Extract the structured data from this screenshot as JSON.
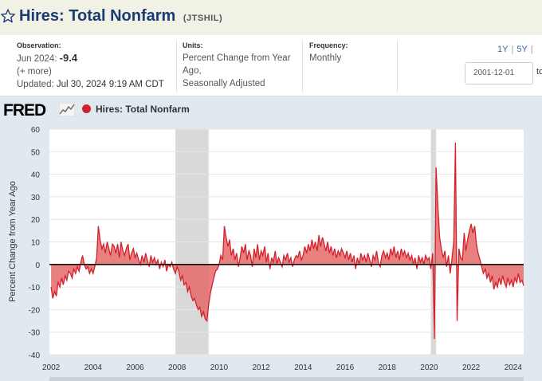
{
  "header": {
    "title": "Hires: Total Nonfarm",
    "series_id": "(JTSHIL)"
  },
  "meta": {
    "observation_label": "Observation:",
    "observation_date": "Jun 2024:",
    "observation_value": "-9.4",
    "more_link": "(+ more)",
    "updated_label": "Updated:",
    "updated_value": "Jul 30, 2024 9:19 AM CDT",
    "units_label": "Units:",
    "units_line1": "Percent Change from Year",
    "units_line2": "Ago,",
    "units_line3": "Seasonally Adjusted",
    "frequency_label": "Frequency:",
    "frequency_value": "Monthly"
  },
  "controls": {
    "range_1y": "1Y",
    "range_5y": "5Y",
    "range_sep": "|",
    "start_date": "2001-12-01",
    "to_label": "to"
  },
  "legend": {
    "logo_text": "FRED",
    "series_name": "Hires: Total Nonfarm"
  },
  "colors": {
    "series": "#d3202c",
    "fill": "#e46a6a",
    "recession": "#d9d9d9"
  },
  "chart_data": {
    "type": "area",
    "title": "Hires: Total Nonfarm",
    "ylabel": "Percent Change from Year Ago",
    "xlabel": "",
    "ylim": [
      -40,
      60
    ],
    "xlim": [
      2001.92,
      2024.5
    ],
    "yticks": [
      60,
      50,
      40,
      30,
      20,
      10,
      0,
      -10,
      -20,
      -30,
      -40
    ],
    "xticks": [
      "2002",
      "2004",
      "2006",
      "2008",
      "2010",
      "2012",
      "2014",
      "2016",
      "2018",
      "2020",
      "2022",
      "2024"
    ],
    "recessions": [
      [
        2007.92,
        2009.5
      ],
      [
        2020.08,
        2020.33
      ]
    ],
    "points": [
      [
        2002.0,
        -10
      ],
      [
        2002.08,
        -15
      ],
      [
        2002.17,
        -12
      ],
      [
        2002.25,
        -14
      ],
      [
        2002.33,
        -8
      ],
      [
        2002.42,
        -10
      ],
      [
        2002.5,
        -6
      ],
      [
        2002.58,
        -9
      ],
      [
        2002.67,
        -5
      ],
      [
        2002.75,
        -7
      ],
      [
        2002.83,
        -3
      ],
      [
        2002.92,
        -4
      ],
      [
        2003.0,
        -6
      ],
      [
        2003.08,
        -2
      ],
      [
        2003.17,
        -4
      ],
      [
        2003.25,
        -1
      ],
      [
        2003.33,
        -3
      ],
      [
        2003.42,
        1
      ],
      [
        2003.5,
        4
      ],
      [
        2003.58,
        0
      ],
      [
        2003.67,
        -2
      ],
      [
        2003.75,
        -1
      ],
      [
        2003.83,
        -4
      ],
      [
        2003.92,
        -2
      ],
      [
        2004.0,
        -4
      ],
      [
        2004.08,
        -1
      ],
      [
        2004.17,
        3
      ],
      [
        2004.25,
        17
      ],
      [
        2004.33,
        11
      ],
      [
        2004.42,
        7
      ],
      [
        2004.5,
        9
      ],
      [
        2004.58,
        5
      ],
      [
        2004.67,
        10
      ],
      [
        2004.75,
        7
      ],
      [
        2004.83,
        4
      ],
      [
        2004.92,
        9
      ],
      [
        2005.0,
        8
      ],
      [
        2005.08,
        5
      ],
      [
        2005.17,
        9
      ],
      [
        2005.25,
        3
      ],
      [
        2005.33,
        10
      ],
      [
        2005.42,
        6
      ],
      [
        2005.5,
        4
      ],
      [
        2005.58,
        7
      ],
      [
        2005.67,
        9
      ],
      [
        2005.75,
        2
      ],
      [
        2005.83,
        5
      ],
      [
        2005.92,
        7
      ],
      [
        2006.0,
        3
      ],
      [
        2006.08,
        5
      ],
      [
        2006.17,
        2
      ],
      [
        2006.25,
        0
      ],
      [
        2006.33,
        4
      ],
      [
        2006.42,
        1
      ],
      [
        2006.5,
        5
      ],
      [
        2006.58,
        2
      ],
      [
        2006.67,
        -1
      ],
      [
        2006.75,
        4
      ],
      [
        2006.83,
        1
      ],
      [
        2006.92,
        3
      ],
      [
        2007.0,
        0
      ],
      [
        2007.08,
        2
      ],
      [
        2007.17,
        -2
      ],
      [
        2007.25,
        1
      ],
      [
        2007.33,
        -1
      ],
      [
        2007.42,
        2
      ],
      [
        2007.5,
        -3
      ],
      [
        2007.58,
        0
      ],
      [
        2007.67,
        -1
      ],
      [
        2007.75,
        1
      ],
      [
        2007.83,
        -2
      ],
      [
        2007.92,
        -4
      ],
      [
        2008.0,
        -1
      ],
      [
        2008.08,
        -3
      ],
      [
        2008.17,
        -7
      ],
      [
        2008.25,
        -5
      ],
      [
        2008.33,
        -9
      ],
      [
        2008.42,
        -8
      ],
      [
        2008.5,
        -12
      ],
      [
        2008.58,
        -10
      ],
      [
        2008.67,
        -14
      ],
      [
        2008.75,
        -16
      ],
      [
        2008.83,
        -15
      ],
      [
        2008.92,
        -18
      ],
      [
        2009.0,
        -20
      ],
      [
        2009.08,
        -19
      ],
      [
        2009.17,
        -23
      ],
      [
        2009.25,
        -21
      ],
      [
        2009.33,
        -24
      ],
      [
        2009.42,
        -25
      ],
      [
        2009.5,
        -18
      ],
      [
        2009.58,
        -13
      ],
      [
        2009.67,
        -9
      ],
      [
        2009.75,
        -6
      ],
      [
        2009.83,
        -3
      ],
      [
        2009.92,
        -2
      ],
      [
        2010.0,
        0
      ],
      [
        2010.08,
        4
      ],
      [
        2010.17,
        2
      ],
      [
        2010.25,
        17
      ],
      [
        2010.33,
        12
      ],
      [
        2010.42,
        8
      ],
      [
        2010.5,
        11
      ],
      [
        2010.58,
        4
      ],
      [
        2010.67,
        7
      ],
      [
        2010.75,
        2
      ],
      [
        2010.83,
        5
      ],
      [
        2010.92,
        -1
      ],
      [
        2011.0,
        3
      ],
      [
        2011.08,
        8
      ],
      [
        2011.17,
        5
      ],
      [
        2011.25,
        9
      ],
      [
        2011.33,
        2
      ],
      [
        2011.42,
        6
      ],
      [
        2011.5,
        4
      ],
      [
        2011.58,
        -1
      ],
      [
        2011.67,
        7
      ],
      [
        2011.75,
        3
      ],
      [
        2011.83,
        9
      ],
      [
        2011.92,
        2
      ],
      [
        2012.0,
        6
      ],
      [
        2012.08,
        4
      ],
      [
        2012.17,
        8
      ],
      [
        2012.25,
        1
      ],
      [
        2012.33,
        5
      ],
      [
        2012.42,
        -2
      ],
      [
        2012.5,
        3
      ],
      [
        2012.58,
        1
      ],
      [
        2012.67,
        6
      ],
      [
        2012.75,
        0
      ],
      [
        2012.83,
        3
      ],
      [
        2012.92,
        1
      ],
      [
        2013.0,
        -1
      ],
      [
        2013.08,
        4
      ],
      [
        2013.17,
        2
      ],
      [
        2013.25,
        5
      ],
      [
        2013.33,
        1
      ],
      [
        2013.42,
        3
      ],
      [
        2013.5,
        -1
      ],
      [
        2013.58,
        2
      ],
      [
        2013.67,
        4
      ],
      [
        2013.75,
        3
      ],
      [
        2013.83,
        6
      ],
      [
        2013.92,
        2
      ],
      [
        2014.0,
        4
      ],
      [
        2014.08,
        8
      ],
      [
        2014.17,
        5
      ],
      [
        2014.25,
        9
      ],
      [
        2014.33,
        6
      ],
      [
        2014.42,
        11
      ],
      [
        2014.5,
        7
      ],
      [
        2014.58,
        10
      ],
      [
        2014.67,
        6
      ],
      [
        2014.75,
        13
      ],
      [
        2014.83,
        8
      ],
      [
        2014.92,
        12
      ],
      [
        2015.0,
        9
      ],
      [
        2015.08,
        6
      ],
      [
        2015.17,
        10
      ],
      [
        2015.25,
        5
      ],
      [
        2015.33,
        8
      ],
      [
        2015.42,
        4
      ],
      [
        2015.5,
        7
      ],
      [
        2015.58,
        3
      ],
      [
        2015.67,
        6
      ],
      [
        2015.75,
        4
      ],
      [
        2015.83,
        7
      ],
      [
        2015.92,
        5
      ],
      [
        2016.0,
        3
      ],
      [
        2016.08,
        6
      ],
      [
        2016.17,
        2
      ],
      [
        2016.25,
        5
      ],
      [
        2016.33,
        1
      ],
      [
        2016.42,
        4
      ],
      [
        2016.5,
        -2
      ],
      [
        2016.58,
        3
      ],
      [
        2016.67,
        0
      ],
      [
        2016.75,
        5
      ],
      [
        2016.83,
        2
      ],
      [
        2016.92,
        4
      ],
      [
        2017.0,
        1
      ],
      [
        2017.08,
        5
      ],
      [
        2017.17,
        2
      ],
      [
        2017.25,
        -1
      ],
      [
        2017.33,
        4
      ],
      [
        2017.42,
        2
      ],
      [
        2017.5,
        6
      ],
      [
        2017.58,
        1
      ],
      [
        2017.67,
        -1
      ],
      [
        2017.75,
        4
      ],
      [
        2017.83,
        6
      ],
      [
        2017.92,
        3
      ],
      [
        2018.0,
        5
      ],
      [
        2018.08,
        2
      ],
      [
        2018.17,
        7
      ],
      [
        2018.25,
        4
      ],
      [
        2018.33,
        8
      ],
      [
        2018.42,
        3
      ],
      [
        2018.5,
        6
      ],
      [
        2018.58,
        2
      ],
      [
        2018.67,
        7
      ],
      [
        2018.75,
        4
      ],
      [
        2018.83,
        6
      ],
      [
        2018.92,
        3
      ],
      [
        2019.0,
        5
      ],
      [
        2019.08,
        2
      ],
      [
        2019.17,
        4
      ],
      [
        2019.25,
        0
      ],
      [
        2019.33,
        3
      ],
      [
        2019.42,
        -2
      ],
      [
        2019.5,
        4
      ],
      [
        2019.58,
        1
      ],
      [
        2019.67,
        3
      ],
      [
        2019.75,
        0
      ],
      [
        2019.83,
        4
      ],
      [
        2019.92,
        2
      ],
      [
        2020.0,
        3
      ],
      [
        2020.08,
        -2
      ],
      [
        2020.17,
        5
      ],
      [
        2020.25,
        -33
      ],
      [
        2020.33,
        43
      ],
      [
        2020.42,
        25
      ],
      [
        2020.5,
        12
      ],
      [
        2020.58,
        7
      ],
      [
        2020.67,
        3
      ],
      [
        2020.75,
        6
      ],
      [
        2020.83,
        -1
      ],
      [
        2020.92,
        4
      ],
      [
        2021.0,
        -4
      ],
      [
        2021.08,
        2
      ],
      [
        2021.17,
        10
      ],
      [
        2021.25,
        54
      ],
      [
        2021.33,
        -25
      ],
      [
        2021.42,
        7
      ],
      [
        2021.5,
        3
      ],
      [
        2021.58,
        2
      ],
      [
        2021.67,
        14
      ],
      [
        2021.75,
        6
      ],
      [
        2021.83,
        11
      ],
      [
        2021.92,
        15
      ],
      [
        2022.0,
        18
      ],
      [
        2022.08,
        14
      ],
      [
        2022.17,
        17
      ],
      [
        2022.25,
        9
      ],
      [
        2022.33,
        5
      ],
      [
        2022.42,
        2
      ],
      [
        2022.5,
        -1
      ],
      [
        2022.58,
        -4
      ],
      [
        2022.67,
        -2
      ],
      [
        2022.75,
        -6
      ],
      [
        2022.83,
        -4
      ],
      [
        2022.92,
        -8
      ],
      [
        2023.0,
        -5
      ],
      [
        2023.08,
        -11
      ],
      [
        2023.17,
        -8
      ],
      [
        2023.25,
        -10
      ],
      [
        2023.33,
        -6
      ],
      [
        2023.42,
        -9
      ],
      [
        2023.5,
        -5
      ],
      [
        2023.58,
        -8
      ],
      [
        2023.67,
        -10
      ],
      [
        2023.75,
        -6
      ],
      [
        2023.83,
        -9
      ],
      [
        2023.92,
        -7
      ],
      [
        2024.0,
        -10
      ],
      [
        2024.08,
        -6
      ],
      [
        2024.17,
        -8
      ],
      [
        2024.25,
        -4
      ],
      [
        2024.33,
        -8
      ],
      [
        2024.42,
        -7
      ],
      [
        2024.5,
        -9.4
      ]
    ]
  }
}
